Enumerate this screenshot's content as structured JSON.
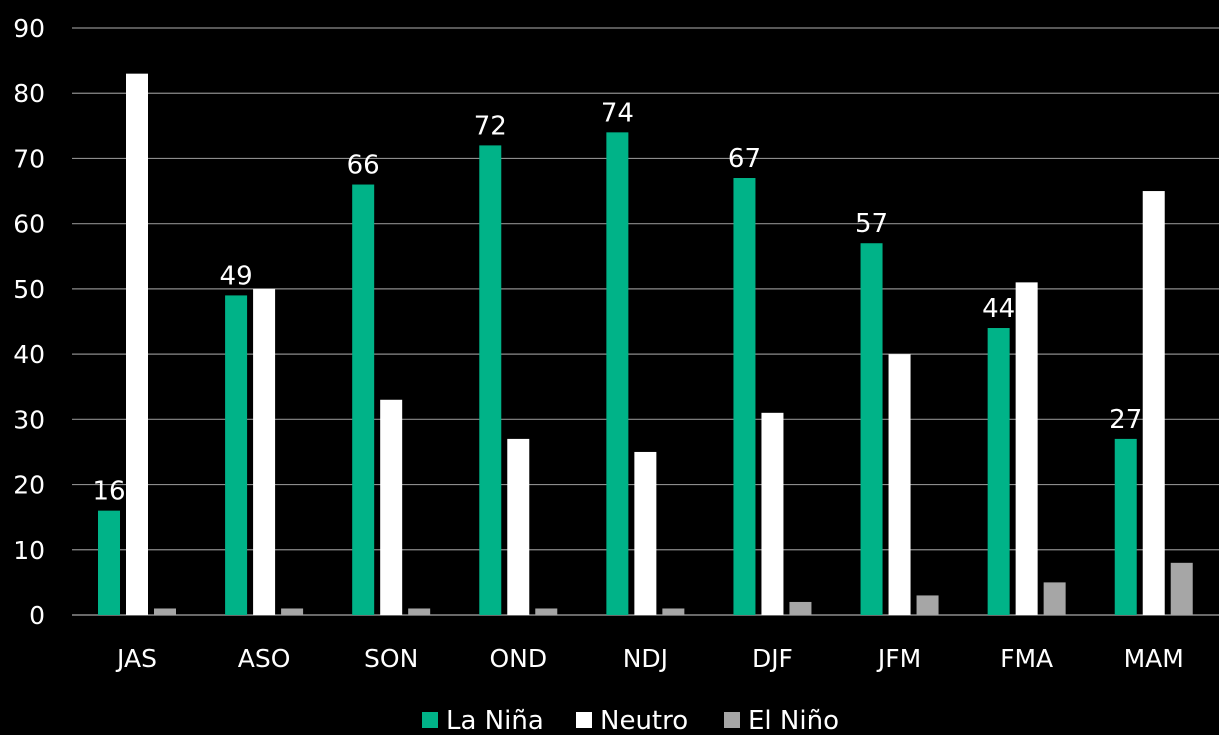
{
  "chart_data": {
    "type": "bar",
    "title": "",
    "xlabel": "",
    "ylabel": "",
    "ylim": [
      0,
      90
    ],
    "yticks": [
      0,
      10,
      20,
      30,
      40,
      50,
      60,
      70,
      80,
      90
    ],
    "grid": true,
    "legend_position": "bottom",
    "categories": [
      "JAS",
      "ASO",
      "SON",
      "OND",
      "NDJ",
      "DJF",
      "JFM",
      "FMA",
      "MAM"
    ],
    "series": [
      {
        "name": "La Niña",
        "color": "#00b388",
        "values": [
          16,
          49,
          66,
          72,
          74,
          67,
          57,
          44,
          27
        ],
        "data_labels": [
          "16",
          "49",
          "66",
          "72",
          "74",
          "67",
          "57",
          "44",
          "27"
        ]
      },
      {
        "name": "Neutro",
        "color": "#ffffff",
        "values": [
          83,
          50,
          33,
          27,
          25,
          31,
          40,
          51,
          65
        ]
      },
      {
        "name": "El Niño",
        "color": "#a6a6a6",
        "values": [
          1,
          1,
          1,
          1,
          1,
          2,
          3,
          5,
          8
        ]
      }
    ]
  },
  "colors": {
    "background": "#000000",
    "text": "#ffffff",
    "grid": "#8c8c8c"
  }
}
